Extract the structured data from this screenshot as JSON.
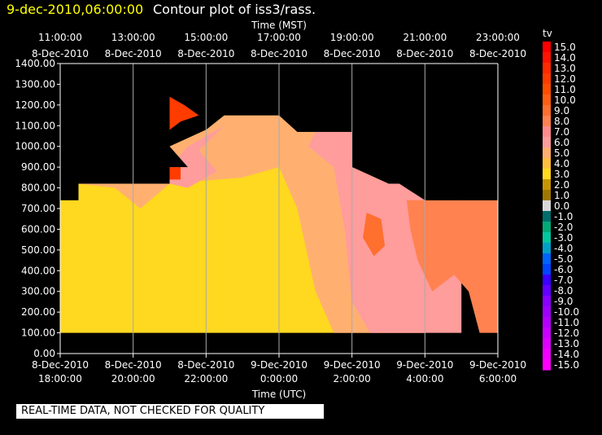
{
  "header": {
    "date": "9-dec-2010,06:00:00",
    "title": "Contour plot of iss3/rass."
  },
  "notice": "REAL-TIME DATA, NOT CHECKED FOR QUALITY",
  "chart_data": {
    "type": "heatmap",
    "title": "Contour plot of iss3/rass.",
    "x_top_label": "Time (MST)",
    "x_bottom_label": "Time (UTC)",
    "x_top_ticks": [
      [
        "11:00:00",
        "8-Dec-2010"
      ],
      [
        "13:00:00",
        "8-Dec-2010"
      ],
      [
        "15:00:00",
        "8-Dec-2010"
      ],
      [
        "17:00:00",
        "8-Dec-2010"
      ],
      [
        "19:00:00",
        "8-Dec-2010"
      ],
      [
        "21:00:00",
        "8-Dec-2010"
      ],
      [
        "23:00:00",
        "8-Dec-2010"
      ]
    ],
    "x_bottom_ticks": [
      [
        "8-Dec-2010",
        "18:00:00"
      ],
      [
        "8-Dec-2010",
        "20:00:00"
      ],
      [
        "8-Dec-2010",
        "22:00:00"
      ],
      [
        "9-Dec-2010",
        "0:00:00"
      ],
      [
        "9-Dec-2010",
        "2:00:00"
      ],
      [
        "9-Dec-2010",
        "4:00:00"
      ],
      [
        "9-Dec-2010",
        "6:00:00"
      ]
    ],
    "xlim_hours_utc": [
      18,
      30
    ],
    "y_ticks": [
      "1400.00",
      "1300.00",
      "1200.00",
      "1100.00",
      "1000.00",
      "900.00",
      "800.00",
      "700.00",
      "600.00",
      "500.00",
      "400.00",
      "300.00",
      "200.00",
      "100.00",
      "0.00"
    ],
    "ylim": [
      0,
      1400
    ],
    "grid": true,
    "colorbar": {
      "label": "tv",
      "ticks": [
        "15.0",
        "14.0",
        "13.0",
        "12.0",
        "11.0",
        "10.0",
        "9.0",
        "8.0",
        "7.0",
        "6.0",
        "5.0",
        "4.0",
        "3.0",
        "2.0",
        "1.0",
        "0.0",
        "-1.0",
        "-2.0",
        "-3.0",
        "-4.0",
        "-5.0",
        "-6.0",
        "-7.0",
        "-8.0",
        "-9.0",
        "-10.0",
        "-11.0",
        "-12.0",
        "-13.0",
        "-14.0",
        "-15.0"
      ],
      "colors": [
        "#ff0000",
        "#ff1400",
        "#ff2a00",
        "#ff3c00",
        "#ff4e00",
        "#ff5f14",
        "#ff6f2e",
        "#ff8250",
        "#ff8c8c",
        "#ff9c9c",
        "#ffb070",
        "#ffc040",
        "#ffd820",
        "#c89600",
        "#a07800",
        "#d8d8d8",
        "#006e6e",
        "#00aa78",
        "#00c8a0",
        "#00a0c8",
        "#0064ff",
        "#0046ff",
        "#3c00ff",
        "#6400ff",
        "#8c00ff",
        "#a000ff",
        "#b400ff",
        "#c800ff",
        "#dc00ff",
        "#f000ff",
        "#ff00ff"
      ]
    },
    "regions": [
      {
        "level": 4.5,
        "color": "#ffd820",
        "points": [
          [
            18.0,
            740
          ],
          [
            18.5,
            740
          ],
          [
            18.5,
            820
          ],
          [
            21.0,
            820
          ],
          [
            21.0,
            1000
          ],
          [
            22.0,
            1080
          ],
          [
            22.5,
            1150
          ],
          [
            24.0,
            1150
          ],
          [
            24.5,
            1070
          ],
          [
            26.0,
            1070
          ],
          [
            26.0,
            900
          ],
          [
            27.0,
            820
          ],
          [
            28.0,
            820
          ],
          [
            28.0,
            100
          ],
          [
            18.0,
            100
          ]
        ]
      },
      {
        "level": 5.5,
        "color": "#ffb070",
        "points": [
          [
            18.5,
            820
          ],
          [
            21.0,
            820
          ],
          [
            21.0,
            1000
          ],
          [
            22.0,
            1080
          ],
          [
            22.5,
            1150
          ],
          [
            24.0,
            1150
          ],
          [
            24.5,
            1070
          ],
          [
            26.0,
            1070
          ],
          [
            26.0,
            900
          ],
          [
            27.0,
            820
          ],
          [
            28.0,
            820
          ],
          [
            28.0,
            100
          ],
          [
            25.5,
            100
          ],
          [
            25.0,
            300
          ],
          [
            24.5,
            700
          ],
          [
            24.0,
            900
          ],
          [
            23.0,
            850
          ],
          [
            21.0,
            820
          ],
          [
            20.2,
            700
          ],
          [
            19.5,
            800
          ]
        ]
      },
      {
        "level": 6.5,
        "color": "#ff9c9c",
        "points": [
          [
            18.5,
            820
          ],
          [
            20.0,
            820
          ],
          [
            20.2,
            700
          ],
          [
            20.0,
            820
          ],
          [
            21.0,
            820
          ],
          [
            21.0,
            900
          ],
          [
            21.5,
            1000
          ],
          [
            22.5,
            1100
          ],
          [
            21.8,
            980
          ],
          [
            22.3,
            880
          ],
          [
            21.5,
            800
          ],
          [
            21.0,
            820
          ]
        ]
      },
      {
        "level": 6.5,
        "color": "#ff9c9c",
        "points": [
          [
            25.0,
            1070
          ],
          [
            26.0,
            1070
          ],
          [
            26.0,
            900
          ],
          [
            27.0,
            820
          ],
          [
            28.0,
            820
          ],
          [
            28.0,
            700
          ],
          [
            29.0,
            740
          ],
          [
            29.0,
            100
          ],
          [
            26.5,
            100
          ],
          [
            26.0,
            250
          ],
          [
            25.8,
            600
          ],
          [
            25.5,
            900
          ],
          [
            24.8,
            1000
          ]
        ]
      },
      {
        "level": 7.5,
        "color": "#ff8250",
        "points": [
          [
            27.5,
            740
          ],
          [
            30.0,
            740
          ],
          [
            30.0,
            100
          ],
          [
            29.5,
            100
          ],
          [
            29.2,
            300
          ],
          [
            28.8,
            380
          ],
          [
            28.2,
            300
          ],
          [
            27.8,
            450
          ],
          [
            27.6,
            600
          ]
        ]
      },
      {
        "level": 8.5,
        "color": "#ff6f2e",
        "points": [
          [
            26.4,
            680
          ],
          [
            26.8,
            650
          ],
          [
            26.9,
            520
          ],
          [
            26.6,
            470
          ],
          [
            26.3,
            560
          ]
        ]
      },
      {
        "level": 10.5,
        "color": "#ff3c00",
        "points": [
          [
            21.0,
            1240
          ],
          [
            21.0,
            1080
          ],
          [
            21.3,
            1120
          ],
          [
            21.8,
            1150
          ],
          [
            21.4,
            1200
          ]
        ]
      },
      {
        "level": 10.5,
        "color": "#ff3c00",
        "points": [
          [
            21.0,
            900
          ],
          [
            21.3,
            900
          ],
          [
            21.3,
            840
          ],
          [
            21.0,
            840
          ]
        ]
      }
    ],
    "masks": [
      {
        "points": [
          [
            18.0,
            1400
          ],
          [
            30.0,
            1400
          ],
          [
            30.0,
            740
          ],
          [
            28.0,
            740
          ],
          [
            27.3,
            820
          ],
          [
            26.0,
            900
          ],
          [
            26.0,
            1070
          ],
          [
            24.5,
            1070
          ],
          [
            24.0,
            1150
          ],
          [
            22.0,
            1150
          ],
          [
            21.0,
            1240
          ],
          [
            21.0,
            1000
          ],
          [
            21.5,
            900
          ],
          [
            21.0,
            900
          ],
          [
            21.0,
            820
          ],
          [
            18.5,
            820
          ],
          [
            18.5,
            740
          ],
          [
            18.0,
            740
          ]
        ]
      },
      {
        "points": [
          [
            28.0,
            1400
          ],
          [
            30.0,
            1400
          ],
          [
            30.0,
            740
          ],
          [
            28.0,
            740
          ]
        ]
      }
    ]
  }
}
